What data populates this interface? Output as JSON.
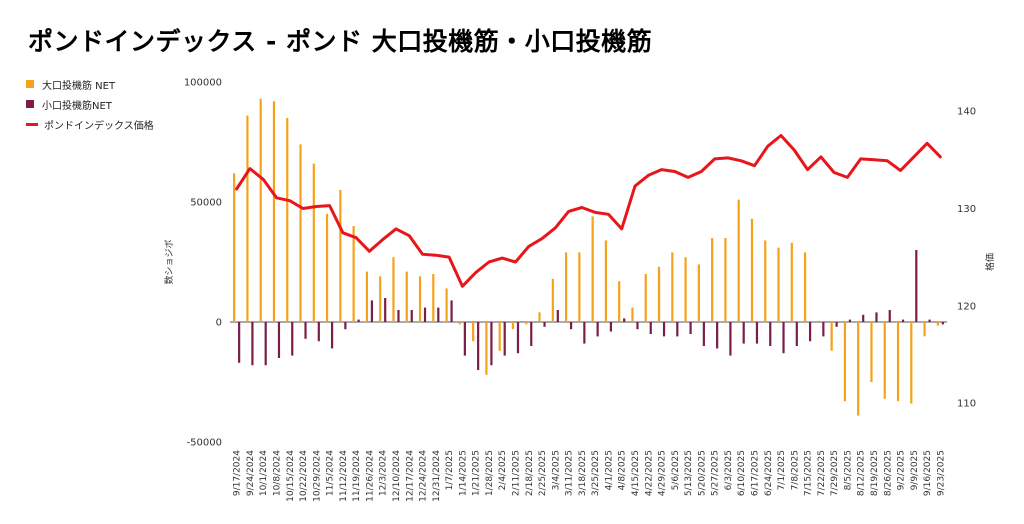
{
  "title": "ポンドインデックス - ポンド 大口投機筋・小口投機筋",
  "chart_data": {
    "type": "bar+line",
    "categories": [
      "9/17/2024",
      "9/24/2024",
      "10/1/2024",
      "10/8/2024",
      "10/15/2024",
      "10/22/2024",
      "10/29/2024",
      "11/5/2024",
      "11/12/2024",
      "11/19/2024",
      "11/26/2024",
      "12/3/2024",
      "12/10/2024",
      "12/17/2024",
      "12/24/2024",
      "12/31/2024",
      "1/7/2025",
      "1/14/2025",
      "1/21/2025",
      "1/28/2025",
      "2/4/2025",
      "2/11/2025",
      "2/18/2025",
      "2/25/2025",
      "3/4/2025",
      "3/11/2025",
      "3/18/2025",
      "3/25/2025",
      "4/1/2025",
      "4/8/2025",
      "4/15/2025",
      "4/22/2025",
      "4/29/2025",
      "5/6/2025",
      "5/13/2025",
      "5/20/2025",
      "5/27/2025",
      "6/3/2025",
      "6/10/2025",
      "6/17/2025",
      "6/24/2025",
      "7/1/2025",
      "7/8/2025",
      "7/15/2025",
      "7/22/2025",
      "7/29/2025",
      "8/5/2025",
      "8/12/2025",
      "8/19/2025",
      "8/26/2025",
      "9/2/2025",
      "9/9/2025",
      "9/16/2025",
      "9/23/2025"
    ],
    "tick_labels": [
      "9/17/2024",
      "9/24/2024",
      "10/1/2024",
      "10/8/2024",
      "10/15/2024",
      "10/22/2024",
      "10/29/2024",
      "11/5/2024",
      "11/12/2024",
      "11/19/2024",
      "11/26/2024",
      "12/3/2024",
      "12/10/2024",
      "12/17/2024",
      "12/24/2024",
      "12/31/2024",
      "1/7/2025",
      "1/14/2025",
      "1/21/2025",
      "1/28/2025",
      "2/4/2025",
      "2/11/2025",
      "2/18/2025",
      "2/25/2025",
      "3/4/2025",
      "3/11/2025",
      "3/18/2025",
      "3/25/2025",
      "4/1/2025",
      "4/8/2025",
      "4/15/2025",
      "4/22/2025",
      "4/29/2025",
      "5/6/2025",
      "5/13/2025",
      "5/20/2025",
      "5/27/2025",
      "6/3/2025",
      "6/10/2025",
      "6/17/2025",
      "6/24/2025",
      "7/1/2025",
      "7/8/2025",
      "7/15/2025",
      "7/22/2025",
      "7/29/2025",
      "8/5/2025",
      "8/12/2025",
      "8/19/2025",
      "8/26/2025",
      "9/2/2025",
      "9/9/2025",
      "9/16/2025",
      "9/23/2025"
    ],
    "series": [
      {
        "name": "大口投機筋  NET",
        "kind": "bar",
        "axis": "left",
        "color": "#f5a21b",
        "values": [
          62000,
          86000,
          93000,
          92000,
          85000,
          74000,
          66000,
          45000,
          55000,
          40000,
          21000,
          19000,
          27000,
          21000,
          19000,
          20000,
          14000,
          -1000,
          -8000,
          -22000,
          -12000,
          -3000,
          -1000,
          4000,
          18000,
          29000,
          29000,
          44000,
          34000,
          17000,
          6000,
          20000,
          23000,
          29000,
          27000,
          24000,
          35000,
          35000,
          51000,
          43000,
          34000,
          31000,
          33000,
          29000,
          500,
          -12000,
          -33000,
          -39000,
          -25000,
          -32000,
          -33000,
          -34000,
          -6000,
          -1500
        ]
      },
      {
        "name": "小口投機筋NET",
        "kind": "bar",
        "axis": "left",
        "color": "#7a1e48",
        "values": [
          -17000,
          -18000,
          -18000,
          -15000,
          -14000,
          -7000,
          -8000,
          -11000,
          -3000,
          1000,
          9000,
          10000,
          5000,
          5000,
          6000,
          6000,
          9000,
          -14000,
          -20000,
          -18000,
          -14000,
          -13000,
          -10000,
          -2000,
          5000,
          -3000,
          -9000,
          -6000,
          -4000,
          1500,
          -3000,
          -5000,
          -6000,
          -6000,
          -5000,
          -10000,
          -11000,
          -14000,
          -9000,
          -9000,
          -10000,
          -13000,
          -10000,
          -8000,
          -6000,
          -2000,
          1000,
          3000,
          4000,
          5000,
          1000,
          30000,
          1000,
          -1000
        ]
      },
      {
        "name": "ポンドインデックス価格",
        "kind": "line",
        "axis": "right",
        "color": "#e8161b",
        "values": [
          132,
          134.1,
          133,
          131.1,
          130.8,
          130,
          130.2,
          130.3,
          127.5,
          127,
          125.6,
          126.8,
          127.9,
          127.2,
          125.3,
          125.2,
          125,
          122,
          123.4,
          124.5,
          124.9,
          124.5,
          126.1,
          126.9,
          128,
          129.7,
          130.1,
          129.6,
          129.4,
          127.9,
          132.3,
          133.4,
          134,
          133.8,
          133.2,
          133.8,
          135.1,
          135.2,
          134.9,
          134.4,
          136.4,
          137.5,
          136,
          134,
          135.3,
          133.7,
          133.2,
          135.1,
          135,
          134.9,
          133.9,
          135.3,
          136.7,
          135.3
        ]
      }
    ],
    "left_axis": {
      "label": "数ショジボ",
      "ylim": [
        -50000,
        100000
      ],
      "ticks": [
        -50000,
        0,
        50000,
        100000
      ]
    },
    "right_axis": {
      "label": "格価",
      "ylim": [
        106,
        143
      ],
      "ticks": [
        110,
        120,
        130,
        140
      ]
    },
    "legend_position": "top-left"
  }
}
